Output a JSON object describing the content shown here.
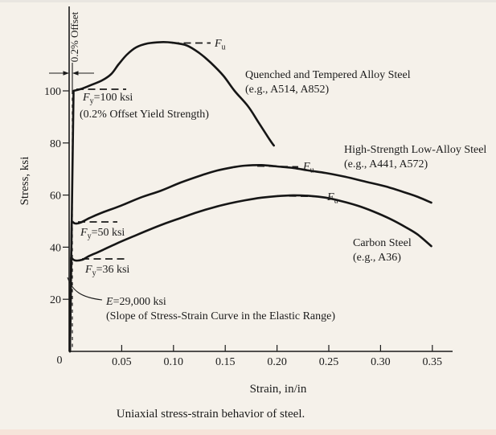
{
  "figure": {
    "caption": "Uniaxial stress-strain behavior of steel.",
    "x_axis": {
      "title": "Strain, in/in",
      "tick_labels": [
        "0",
        "0.05",
        "0.10",
        "0.15",
        "0.20",
        "0.25",
        "0.30",
        "0.35"
      ]
    },
    "y_axis": {
      "title": "Stress, ksi",
      "tick_labels": [
        "20",
        "40",
        "60",
        "80",
        "100"
      ]
    },
    "annotations": {
      "offset_label": "0.2% Offset",
      "fy100": {
        "sym": "F",
        "sub": "y",
        "rest": "=100 ksi",
        "note": "(0.2% Offset Yield Strength)"
      },
      "fy50": {
        "sym": "F",
        "sub": "y",
        "rest": "=50 ksi"
      },
      "fy36": {
        "sym": "F",
        "sub": "y",
        "rest": "=36 ksi"
      },
      "fu": {
        "sym": "F",
        "sub": "u"
      },
      "modulus": {
        "sym": "E",
        "rest": "=29,000 ksi",
        "note": "(Slope of Stress-Strain Curve in the Elastic Range)"
      },
      "curve_qt": {
        "line1": "Quenched and Tempered Alloy Steel",
        "line2": "(e.g., A514, A852)"
      },
      "curve_hsla": {
        "line1": "High-Strength Low-Alloy Steel",
        "line2": "(e.g., A441, A572)"
      },
      "curve_carbon": {
        "line1": "Carbon Steel",
        "line2": "(e.g., A36)"
      }
    }
  },
  "chart_data": {
    "type": "line",
    "title": "Uniaxial stress-strain behavior of steel.",
    "xlabel": "Strain, in/in",
    "ylabel": "Stress, ksi",
    "xlim": [
      0,
      0.37
    ],
    "ylim": [
      0,
      131
    ],
    "x_ticks": [
      0,
      0.05,
      0.1,
      0.15,
      0.2,
      0.25,
      0.3,
      0.35
    ],
    "y_ticks": [
      20,
      40,
      60,
      80,
      100
    ],
    "grid": false,
    "E_ksi": 29000,
    "offset_yield_method": "0.2% Offset",
    "series": [
      {
        "name": "Quenched and Tempered Alloy Steel (e.g., A514, A852)",
        "Fy_ksi": 100,
        "Fu_ksi": 118.7,
        "points": [
          [
            0,
            0
          ],
          [
            0.0035,
            100
          ],
          [
            0.012,
            100.9
          ],
          [
            0.022,
            102.5
          ],
          [
            0.031,
            104.0
          ],
          [
            0.04,
            106.5
          ],
          [
            0.047,
            110.2
          ],
          [
            0.055,
            113.9
          ],
          [
            0.064,
            116.7
          ],
          [
            0.075,
            118.2
          ],
          [
            0.088,
            118.7
          ],
          [
            0.099,
            118.5
          ],
          [
            0.113,
            117.4
          ],
          [
            0.125,
            114.5
          ],
          [
            0.136,
            110.8
          ],
          [
            0.148,
            105.9
          ],
          [
            0.159,
            100.0
          ],
          [
            0.172,
            94.1
          ],
          [
            0.182,
            88.0
          ],
          [
            0.193,
            81.2
          ],
          [
            0.197,
            79.0
          ]
        ]
      },
      {
        "name": "High-Strength Low-Alloy Steel (e.g., A441, A572)",
        "Fy_ksi": 50,
        "Fu_ksi": 71.5,
        "points": [
          [
            0,
            0
          ],
          [
            0.0017,
            50
          ],
          [
            0.005,
            49.1
          ],
          [
            0.01,
            49.4
          ],
          [
            0.019,
            51.2
          ],
          [
            0.03,
            53.1
          ],
          [
            0.049,
            55.9
          ],
          [
            0.068,
            59.0
          ],
          [
            0.088,
            61.7
          ],
          [
            0.107,
            64.8
          ],
          [
            0.127,
            67.6
          ],
          [
            0.142,
            69.4
          ],
          [
            0.158,
            70.7
          ],
          [
            0.169,
            71.3
          ],
          [
            0.185,
            71.5
          ],
          [
            0.2,
            71.0
          ],
          [
            0.216,
            70.4
          ],
          [
            0.231,
            69.4
          ],
          [
            0.247,
            68.5
          ],
          [
            0.266,
            67.0
          ],
          [
            0.286,
            65.1
          ],
          [
            0.305,
            63.3
          ],
          [
            0.325,
            60.8
          ],
          [
            0.336,
            59.3
          ],
          [
            0.349,
            57.1
          ]
        ]
      },
      {
        "name": "Carbon Steel (e.g., A36)",
        "Fy_ksi": 36,
        "Fu_ksi": 59.9,
        "points": [
          [
            0,
            0
          ],
          [
            0.0012,
            36
          ],
          [
            0.005,
            34.9
          ],
          [
            0.012,
            35.2
          ],
          [
            0.019,
            36.7
          ],
          [
            0.03,
            38.6
          ],
          [
            0.045,
            41.4
          ],
          [
            0.061,
            44.1
          ],
          [
            0.076,
            46.6
          ],
          [
            0.092,
            49.1
          ],
          [
            0.107,
            51.2
          ],
          [
            0.123,
            53.4
          ],
          [
            0.138,
            55.2
          ],
          [
            0.154,
            56.8
          ],
          [
            0.169,
            58.0
          ],
          [
            0.185,
            59.0
          ],
          [
            0.2,
            59.6
          ],
          [
            0.216,
            59.9
          ],
          [
            0.231,
            59.7
          ],
          [
            0.247,
            59.0
          ],
          [
            0.262,
            57.7
          ],
          [
            0.278,
            55.9
          ],
          [
            0.293,
            53.7
          ],
          [
            0.309,
            50.9
          ],
          [
            0.325,
            47.5
          ],
          [
            0.336,
            44.8
          ],
          [
            0.349,
            40.4
          ]
        ]
      }
    ]
  }
}
